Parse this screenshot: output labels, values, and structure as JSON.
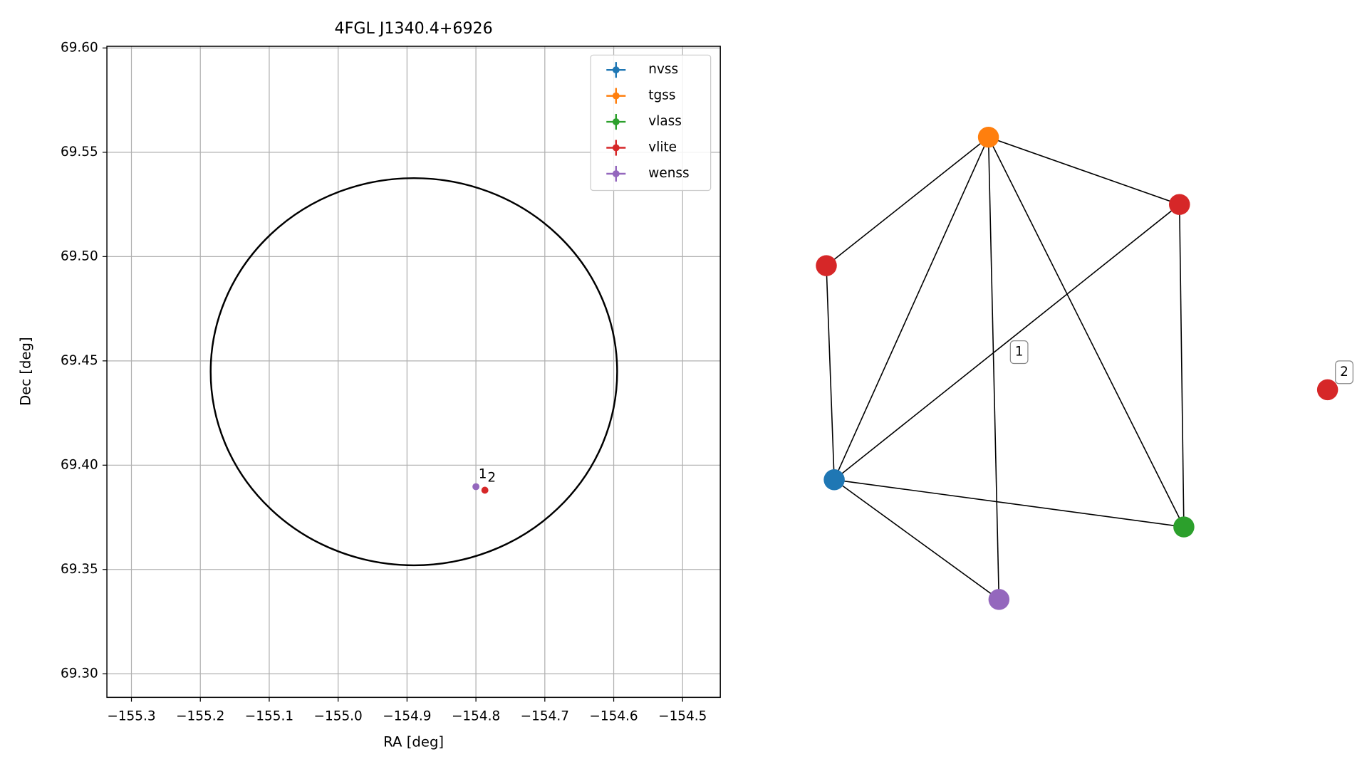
{
  "chart_data": [
    {
      "type": "scatter",
      "title": "4FGL J1340.4+6926",
      "x_label": "RA [deg]",
      "y_label": "Dec [deg]",
      "xlim": [
        -155.3356,
        -154.4453
      ],
      "ylim": [
        69.2887,
        69.6008
      ],
      "xticks": [
        {
          "value": -155.3,
          "label": "−155.3"
        },
        {
          "value": -155.2,
          "label": "−155.2"
        },
        {
          "value": -155.1,
          "label": "−155.1"
        },
        {
          "value": -155.0,
          "label": "−155.0"
        },
        {
          "value": -154.9,
          "label": "−154.9"
        },
        {
          "value": -154.8,
          "label": "−154.8"
        },
        {
          "value": -154.7,
          "label": "−154.7"
        },
        {
          "value": -154.6,
          "label": "−154.6"
        },
        {
          "value": -154.5,
          "label": "−154.5"
        }
      ],
      "yticks": [
        {
          "value": 69.3,
          "label": "69.30"
        },
        {
          "value": 69.35,
          "label": "69.35"
        },
        {
          "value": 69.4,
          "label": "69.40"
        },
        {
          "value": 69.45,
          "label": "69.45"
        },
        {
          "value": 69.5,
          "label": "69.50"
        },
        {
          "value": 69.55,
          "label": "69.55"
        },
        {
          "value": 69.6,
          "label": "69.60"
        }
      ],
      "grid": true,
      "legend": "upper right",
      "series": [
        {
          "name": "nvss",
          "color": "#1f77b4",
          "x": [],
          "y": [],
          "labels": []
        },
        {
          "name": "tgss",
          "color": "#ff7f0e",
          "x": [],
          "y": [],
          "labels": []
        },
        {
          "name": "vlass",
          "color": "#2ca02c",
          "x": [],
          "y": [],
          "labels": []
        },
        {
          "name": "vlite",
          "color": "#d62728",
          "x": [
            -154.787
          ],
          "y": [
            69.388
          ],
          "labels": [
            "2"
          ]
        },
        {
          "name": "wenss",
          "color": "#9467bd",
          "x": [
            -154.8
          ],
          "y": [
            69.3897
          ],
          "labels": [
            "1"
          ]
        }
      ],
      "region": {
        "center_x": -154.89,
        "center_y": 69.4448,
        "radius_x": 0.295,
        "radius_y": 0.0928,
        "color": "#000000"
      }
    },
    {
      "type": "network",
      "nodes": [
        {
          "color": "#ff7f0e"
        },
        {
          "color": "#d62728"
        },
        {
          "color": "#d62728"
        },
        {
          "color": "#1f77b4"
        },
        {
          "color": "#2ca02c"
        },
        {
          "color": "#9467bd"
        },
        {
          "color": "#d62728"
        }
      ],
      "edges": [
        [
          0,
          2
        ],
        [
          0,
          1
        ],
        [
          0,
          3
        ],
        [
          0,
          5
        ],
        [
          0,
          4
        ],
        [
          1,
          3
        ],
        [
          1,
          4
        ],
        [
          2,
          3
        ],
        [
          3,
          4
        ],
        [
          3,
          5
        ]
      ],
      "labels": [
        "1",
        "2"
      ]
    }
  ]
}
